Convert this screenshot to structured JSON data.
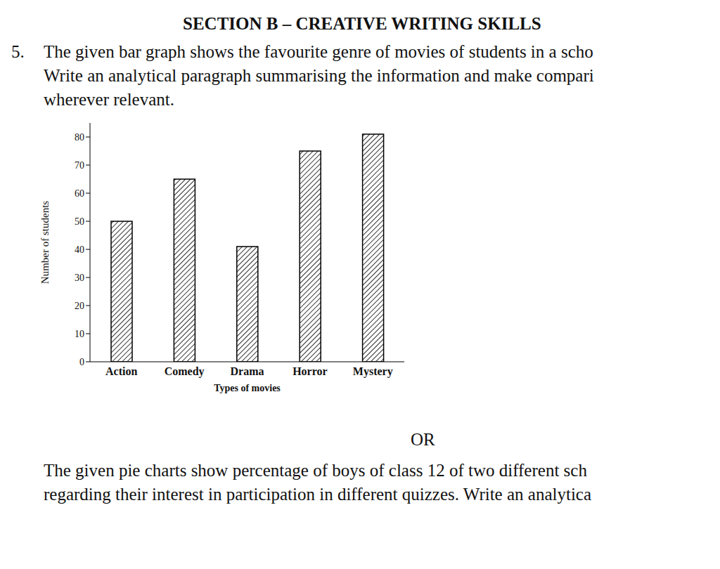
{
  "header": {
    "title": "SECTION B – CREATIVE WRITING SKILLS"
  },
  "question": {
    "number": "5.",
    "lines": [
      "The given bar graph shows the favourite genre of movies of students in a scho",
      "Write an analytical paragraph summarising the information and make compari",
      "wherever relevant."
    ]
  },
  "chart_data": {
    "type": "bar",
    "x_label": "Types of movies",
    "y_label": "Number of students",
    "categories": [
      "Action",
      "Comedy",
      "Drama",
      "Horror",
      "Mystery"
    ],
    "values": [
      50,
      65,
      41,
      75,
      81
    ],
    "color": "#000000",
    "ylim": [
      0,
      85
    ],
    "yticks": [
      0,
      10,
      20,
      30,
      40,
      50,
      60,
      70,
      80
    ],
    "grid": false
  },
  "separator": "OR",
  "alternative": {
    "lines": [
      "The given pie charts show percentage of boys of class 12 of two different sch",
      "regarding their interest in participation in different quizzes. Write an analytica"
    ]
  }
}
